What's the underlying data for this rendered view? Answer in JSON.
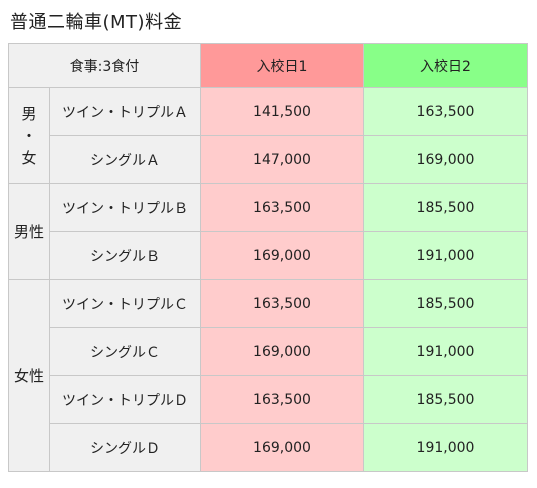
{
  "title": "普通二輪車(MT)料金",
  "header": {
    "corner": "食事:3食付",
    "day1": "入校日1",
    "day2": "入校日2"
  },
  "groups": [
    {
      "label_lines": [
        "男",
        "・",
        "女"
      ],
      "rows": [
        {
          "room": "ツイン・トリプルＡ",
          "day1": "141,500",
          "day2": "163,500"
        },
        {
          "room": "シングルＡ",
          "day1": "147,000",
          "day2": "169,000"
        }
      ]
    },
    {
      "label": "男性",
      "rows": [
        {
          "room": "ツイン・トリプルＢ",
          "day1": "163,500",
          "day2": "185,500"
        },
        {
          "room": "シングルＢ",
          "day1": "169,000",
          "day2": "191,000"
        }
      ]
    },
    {
      "label": "女性",
      "rows": [
        {
          "room": "ツイン・トリプルＣ",
          "day1": "163,500",
          "day2": "185,500"
        },
        {
          "room": "シングルＣ",
          "day1": "169,000",
          "day2": "191,000"
        },
        {
          "room": "ツイン・トリプルＤ",
          "day1": "163,500",
          "day2": "185,500"
        },
        {
          "room": "シングルＤ",
          "day1": "169,000",
          "day2": "191,000"
        }
      ]
    }
  ]
}
